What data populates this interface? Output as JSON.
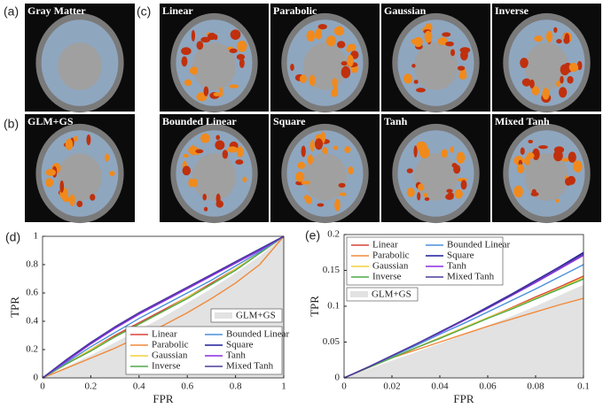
{
  "panels": {
    "a": {
      "label": "(a)",
      "title": "Gray Matter"
    },
    "b": {
      "label": "(b)",
      "title": "GLM+GS"
    },
    "c": {
      "label": "(c)",
      "titles": [
        "Linear",
        "Parabolic",
        "Gaussian",
        "Inverse",
        "Bounded Linear",
        "Square",
        "Tanh",
        "Mixed Tanh"
      ]
    }
  },
  "chart_data": [
    {
      "type": "line",
      "panel_label": "(d)",
      "xlabel": "FPR",
      "ylabel": "TPR",
      "xlim": [
        0,
        1
      ],
      "ylim": [
        0,
        1
      ],
      "xticks": [
        0,
        0.2,
        0.4,
        0.6,
        0.8,
        1
      ],
      "yticks": [
        0,
        0.2,
        0.4,
        0.6,
        0.8,
        1
      ],
      "legend": "lower right",
      "x": [
        0,
        0.1,
        0.2,
        0.3,
        0.4,
        0.5,
        0.6,
        0.7,
        0.8,
        0.9,
        1
      ],
      "series": [
        {
          "name": "Linear",
          "color": "#d7443a",
          "values": [
            0,
            0.1,
            0.2,
            0.3,
            0.39,
            0.48,
            0.57,
            0.67,
            0.77,
            0.88,
            1
          ]
        },
        {
          "name": "Parabolic",
          "color": "#f08a3c",
          "values": [
            0,
            0.07,
            0.14,
            0.21,
            0.29,
            0.37,
            0.46,
            0.56,
            0.67,
            0.8,
            1
          ]
        },
        {
          "name": "Gaussian",
          "color": "#f2cf3a",
          "values": [
            0,
            0.1,
            0.2,
            0.29,
            0.38,
            0.47,
            0.57,
            0.66,
            0.77,
            0.88,
            1
          ]
        },
        {
          "name": "Inverse",
          "color": "#4fa84a",
          "values": [
            0,
            0.1,
            0.19,
            0.29,
            0.38,
            0.47,
            0.56,
            0.66,
            0.76,
            0.88,
            1
          ]
        },
        {
          "name": "Bounded Linear",
          "color": "#4a90d9",
          "values": [
            0,
            0.11,
            0.22,
            0.32,
            0.42,
            0.51,
            0.6,
            0.69,
            0.79,
            0.89,
            1
          ]
        },
        {
          "name": "Square",
          "color": "#1c1c9c",
          "values": [
            0,
            0.13,
            0.25,
            0.36,
            0.46,
            0.55,
            0.64,
            0.73,
            0.82,
            0.91,
            1
          ]
        },
        {
          "name": "Tanh",
          "color": "#8a2be2",
          "values": [
            0,
            0.12,
            0.24,
            0.35,
            0.45,
            0.54,
            0.63,
            0.72,
            0.81,
            0.9,
            1
          ]
        },
        {
          "name": "Mixed Tanh",
          "color": "#4b3b9a",
          "values": [
            0,
            0.13,
            0.25,
            0.36,
            0.46,
            0.55,
            0.64,
            0.73,
            0.82,
            0.91,
            1
          ]
        },
        {
          "name": "GLM+GS",
          "color": "#e2e2e2",
          "kind": "area",
          "values": [
            0,
            0.08,
            0.16,
            0.25,
            0.34,
            0.43,
            0.53,
            0.63,
            0.74,
            0.86,
            1
          ]
        }
      ]
    },
    {
      "type": "line",
      "panel_label": "(e)",
      "xlabel": "FPR",
      "ylabel": "TPR",
      "xlim": [
        0,
        0.1
      ],
      "ylim": [
        0,
        0.2
      ],
      "xticks": [
        0,
        0.02,
        0.04,
        0.06,
        0.08,
        0.1
      ],
      "yticks": [
        0,
        0.05,
        0.1,
        0.15,
        0.2
      ],
      "legend": "upper left",
      "x": [
        0,
        0.01,
        0.02,
        0.03,
        0.04,
        0.05,
        0.06,
        0.07,
        0.08,
        0.09,
        0.1
      ],
      "series": [
        {
          "name": "Linear",
          "color": "#d7443a",
          "values": [
            0,
            0.014,
            0.028,
            0.042,
            0.056,
            0.07,
            0.084,
            0.098,
            0.113,
            0.127,
            0.142
          ]
        },
        {
          "name": "Parabolic",
          "color": "#f08a3c",
          "values": [
            0,
            0.015,
            0.028,
            0.039,
            0.05,
            0.061,
            0.072,
            0.082,
            0.092,
            0.102,
            0.111
          ]
        },
        {
          "name": "Gaussian",
          "color": "#f2cf3a",
          "values": [
            0,
            0.014,
            0.028,
            0.042,
            0.056,
            0.07,
            0.084,
            0.097,
            0.111,
            0.125,
            0.14
          ]
        },
        {
          "name": "Inverse",
          "color": "#4fa84a",
          "values": [
            0,
            0.014,
            0.028,
            0.042,
            0.055,
            0.069,
            0.083,
            0.096,
            0.11,
            0.124,
            0.138
          ]
        },
        {
          "name": "Bounded Linear",
          "color": "#4a90d9",
          "values": [
            0,
            0.015,
            0.03,
            0.045,
            0.061,
            0.076,
            0.092,
            0.108,
            0.124,
            0.141,
            0.158
          ]
        },
        {
          "name": "Square",
          "color": "#1c1c9c",
          "values": [
            0,
            0.015,
            0.031,
            0.047,
            0.064,
            0.081,
            0.099,
            0.117,
            0.136,
            0.155,
            0.175
          ]
        },
        {
          "name": "Tanh",
          "color": "#8a2be2",
          "values": [
            0,
            0.015,
            0.031,
            0.047,
            0.063,
            0.08,
            0.097,
            0.115,
            0.133,
            0.152,
            0.171
          ]
        },
        {
          "name": "Mixed Tanh",
          "color": "#4b3b9a",
          "values": [
            0,
            0.015,
            0.031,
            0.047,
            0.064,
            0.081,
            0.098,
            0.116,
            0.135,
            0.154,
            0.173
          ]
        },
        {
          "name": "GLM+GS",
          "color": "#e2e2e2",
          "kind": "area",
          "values": [
            0,
            0.012,
            0.024,
            0.036,
            0.048,
            0.06,
            0.073,
            0.086,
            0.1,
            0.115,
            0.13
          ]
        }
      ]
    }
  ]
}
